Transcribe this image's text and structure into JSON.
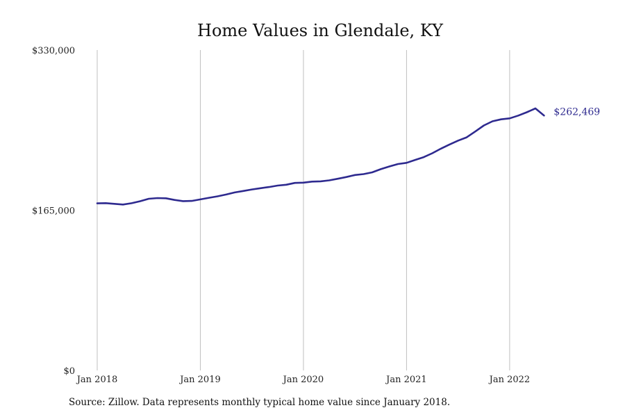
{
  "colors": {
    "line": "#2e2a8f",
    "grid": "#bfbfbf",
    "text": "#222222"
  },
  "source": "Source: Zillow. Data represents monthly typical home value since January 2018.",
  "chart_data": {
    "type": "line",
    "title": "Home Values in Glendale, KY",
    "xlabel": "",
    "ylabel": "",
    "ylim": [
      0,
      330000
    ],
    "xlim": [
      "2018-01",
      "2022-12"
    ],
    "y_ticks": [
      0,
      165000,
      330000
    ],
    "y_tick_labels": [
      "$0",
      "$165,000",
      "$330,000"
    ],
    "x_ticks": [
      "2018-01",
      "2019-01",
      "2020-01",
      "2021-01",
      "2022-01"
    ],
    "x_tick_labels": [
      "Jan 2018",
      "Jan 2019",
      "Jan 2020",
      "Jan 2021",
      "Jan 2022"
    ],
    "grid": "vertical",
    "end_label": "$262,469",
    "series": [
      {
        "x": [
          "2018-01",
          "2018-02",
          "2018-03",
          "2018-04",
          "2018-05",
          "2018-06",
          "2018-07",
          "2018-08",
          "2018-09",
          "2018-10",
          "2018-11",
          "2018-12",
          "2019-01",
          "2019-02",
          "2019-03",
          "2019-04",
          "2019-05",
          "2019-06",
          "2019-07",
          "2019-08",
          "2019-09",
          "2019-10",
          "2019-11",
          "2019-12",
          "2020-01",
          "2020-02",
          "2020-03",
          "2020-04",
          "2020-05",
          "2020-06",
          "2020-07",
          "2020-08",
          "2020-09",
          "2020-10",
          "2020-11",
          "2020-12",
          "2021-01",
          "2021-02",
          "2021-03",
          "2021-04",
          "2021-05",
          "2021-06",
          "2021-07",
          "2021-08",
          "2021-09",
          "2021-10",
          "2021-11",
          "2021-12",
          "2022-01",
          "2022-02",
          "2022-03",
          "2022-04",
          "2022-05"
        ],
        "y": [
          172100,
          172300,
          171600,
          170900,
          172200,
          174300,
          176800,
          177500,
          177300,
          175600,
          174400,
          174600,
          176200,
          177800,
          179300,
          181200,
          183300,
          184800,
          186400,
          187700,
          188900,
          190400,
          191300,
          193100,
          193400,
          194500,
          194800,
          195800,
          197400,
          199200,
          201300,
          202200,
          204000,
          207300,
          210100,
          212600,
          213800,
          216800,
          219700,
          223700,
          228400,
          232700,
          236700,
          240100,
          246100,
          252300,
          256600,
          258600,
          259600,
          262500,
          265900,
          269900,
          262469
        ]
      }
    ]
  }
}
